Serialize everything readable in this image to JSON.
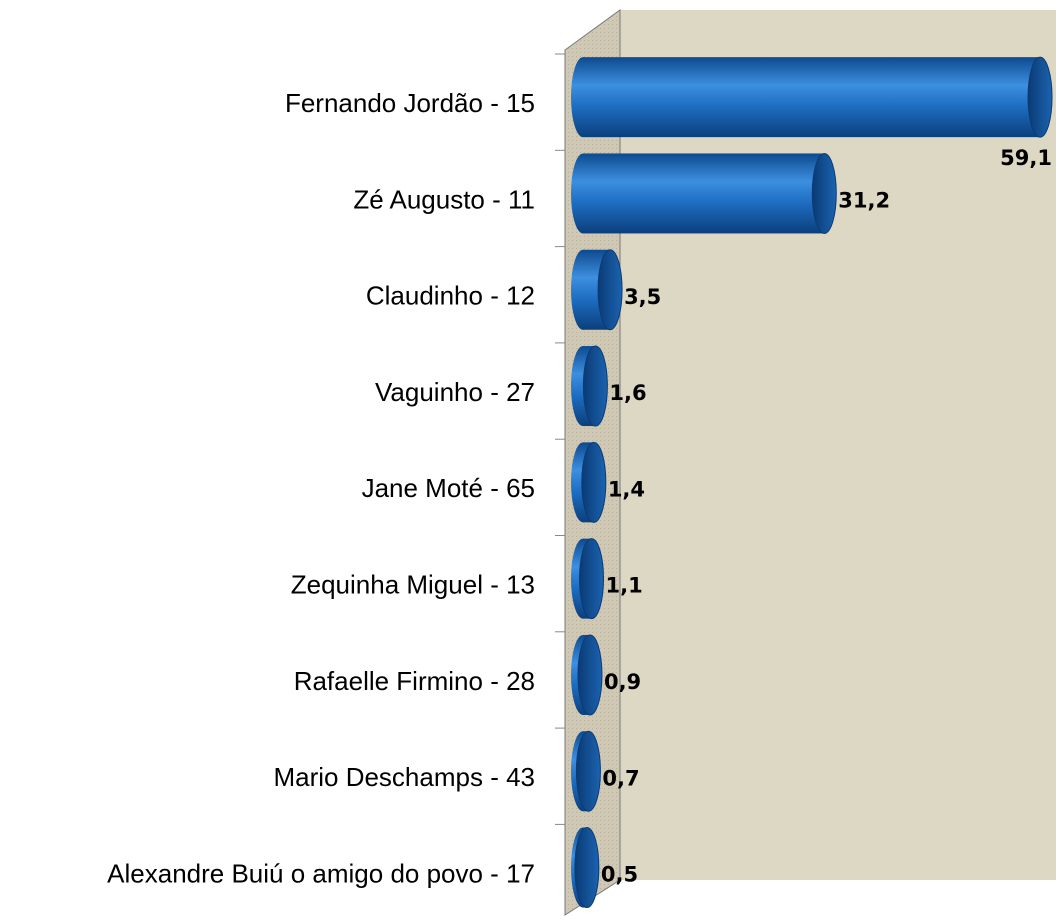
{
  "chart_data": {
    "type": "bar",
    "orientation": "horizontal",
    "categories": [
      "Fernando Jordão - 15",
      "Zé Augusto - 11",
      "Claudinho - 12",
      "Vaguinho - 27",
      "Jane Moté - 65",
      "Zequinha Miguel - 13",
      "Rafaelle Firmino - 28",
      "Mario Deschamps - 43",
      "Alexandre Buiú o amigo do povo - 17"
    ],
    "values": [
      59.1,
      31.2,
      3.5,
      1.6,
      1.4,
      1.1,
      0.9,
      0.7,
      0.5
    ],
    "value_labels": [
      "59,1",
      "31,2",
      "3,5",
      "1,6",
      "1,4",
      "1,1",
      "0,9",
      "0,7",
      "0,5"
    ],
    "color": "#1f6fc4",
    "xlim": [
      0,
      60
    ]
  }
}
